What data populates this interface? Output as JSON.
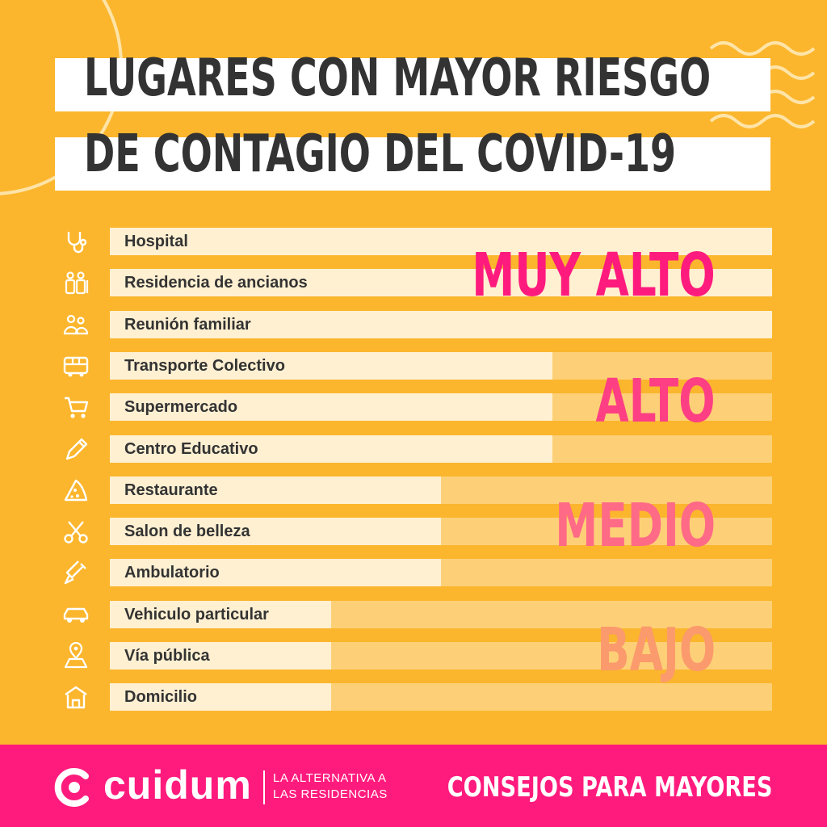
{
  "title": {
    "line1": "LUGARES CON MAYOR RIESGO",
    "line2": "DE CONTAGIO DEL COVID-19"
  },
  "levels": [
    {
      "label": "MUY ALTO",
      "color": "#ff1b7d"
    },
    {
      "label": "ALTO",
      "color": "#ff3f84"
    },
    {
      "label": "MEDIO",
      "color": "#ff6a86"
    },
    {
      "label": "BAJO",
      "color": "#fb9a6c"
    }
  ],
  "places": [
    {
      "label": "Hospital",
      "icon": "stethoscope-icon",
      "level": "MUY ALTO"
    },
    {
      "label": "Residencia de ancianos",
      "icon": "elderly-people-icon",
      "level": "MUY ALTO"
    },
    {
      "label": "Reunión familiar",
      "icon": "family-gathering-icon",
      "level": "MUY ALTO"
    },
    {
      "label": "Transporte Colectivo",
      "icon": "bus-icon",
      "level": "ALTO"
    },
    {
      "label": "Supermercado",
      "icon": "shopping-cart-icon",
      "level": "ALTO"
    },
    {
      "label": "Centro Educativo",
      "icon": "pencil-icon",
      "level": "ALTO"
    },
    {
      "label": "Restaurante",
      "icon": "pizza-slice-icon",
      "level": "MEDIO"
    },
    {
      "label": "Salon de belleza",
      "icon": "scissors-icon",
      "level": "MEDIO"
    },
    {
      "label": "Ambulatorio",
      "icon": "syringe-icon",
      "level": "MEDIO"
    },
    {
      "label": "Vehiculo particular",
      "icon": "car-icon",
      "level": "BAJO"
    },
    {
      "label": "Vía pública",
      "icon": "map-pin-icon",
      "level": "BAJO"
    },
    {
      "label": "Domicilio",
      "icon": "house-icon",
      "level": "BAJO"
    }
  ],
  "footer": {
    "brand": "cuidum",
    "tagline_line1": "LA ALTERNATIVA A",
    "tagline_line2": "LAS RESIDENCIAS",
    "right_text": "CONSEJOS PARA MAYORES"
  }
}
